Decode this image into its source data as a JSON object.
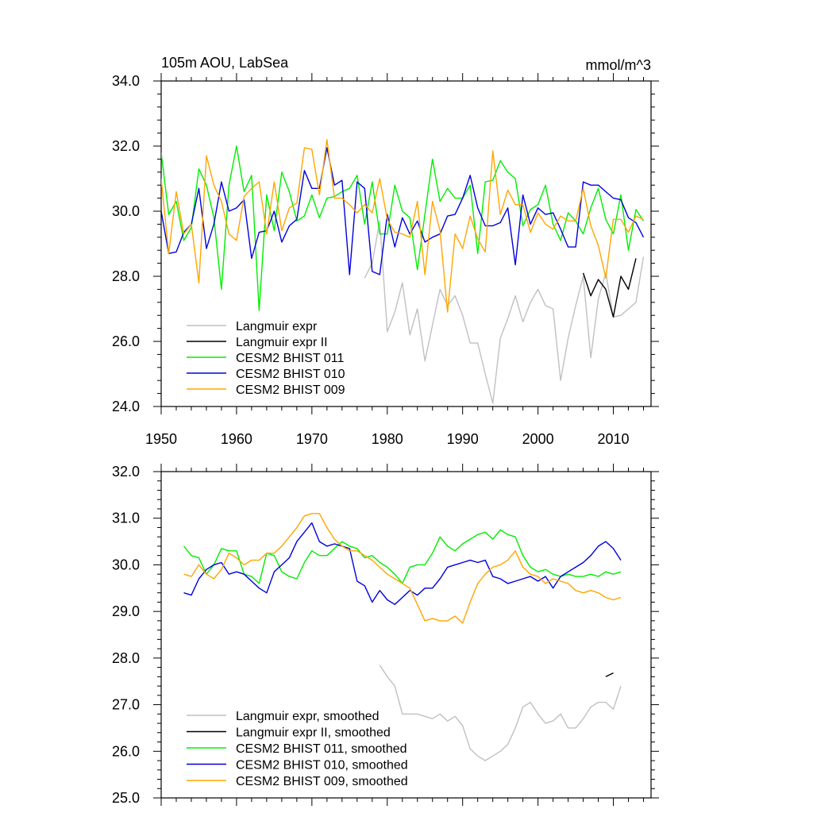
{
  "chart_data": [
    {
      "type": "line",
      "title": "105m AOU, LabSea",
      "units": "mmol/m^3",
      "xlim": [
        1950,
        2015
      ],
      "ylim": [
        24.0,
        34.0
      ],
      "xticks": [
        1950,
        1960,
        1970,
        1980,
        1990,
        2000,
        2010
      ],
      "xtick_labels": [
        "1950",
        "1960",
        "1970",
        "1980",
        "1990",
        "2000",
        "2010"
      ],
      "yticks": [
        24,
        26,
        28,
        30,
        32,
        34
      ],
      "ytick_labels": [
        "24.0",
        "26.0",
        "28.0",
        "30.0",
        "32.0",
        "34.0"
      ],
      "legend_position": "bottom-left",
      "series": [
        {
          "name": "Langmuir expr",
          "color": "#c0c0c0",
          "x": [
            1977,
            1978,
            1979,
            1980,
            1981,
            1982,
            1983,
            1984,
            1985,
            1986,
            1987,
            1988,
            1989,
            1990,
            1991,
            1992,
            1993,
            1994,
            1995,
            1996,
            1997,
            1998,
            1999,
            2000,
            2001,
            2002,
            2003,
            2004,
            2005,
            2006,
            2007,
            2008,
            2009,
            2010,
            2011,
            2012,
            2013,
            2014
          ],
          "y": [
            27.95,
            28.4,
            29.7,
            26.3,
            26.9,
            27.8,
            26.2,
            27.0,
            25.4,
            26.5,
            27.6,
            27.1,
            27.4,
            26.8,
            25.95,
            25.95,
            25.0,
            24.1,
            26.1,
            26.7,
            27.4,
            26.6,
            27.2,
            27.6,
            27.1,
            27.0,
            24.8,
            26.1,
            27.1,
            28.0,
            25.5,
            27.3,
            28.1,
            26.75,
            26.8,
            27.0,
            27.2,
            28.6
          ]
        },
        {
          "name": "Langmuir expr II",
          "color": "#000000",
          "x": [
            2006,
            2007,
            2008,
            2009,
            2010,
            2011,
            2012,
            2013
          ],
          "y": [
            28.1,
            27.4,
            27.9,
            27.6,
            26.75,
            28.0,
            27.6,
            28.55
          ]
        },
        {
          "name": "CESM2 BHIST 011",
          "color": "#00ee00",
          "x": [
            1950,
            1951,
            1952,
            1953,
            1954,
            1955,
            1956,
            1957,
            1958,
            1959,
            1960,
            1961,
            1962,
            1963,
            1964,
            1965,
            1966,
            1967,
            1968,
            1969,
            1970,
            1971,
            1972,
            1973,
            1974,
            1975,
            1976,
            1977,
            1978,
            1979,
            1980,
            1981,
            1982,
            1983,
            1984,
            1985,
            1986,
            1987,
            1988,
            1989,
            1990,
            1991,
            1992,
            1993,
            1994,
            1995,
            1996,
            1997,
            1998,
            1999,
            2000,
            2001,
            2002,
            2003,
            2004,
            2005,
            2006,
            2007,
            2008,
            2009,
            2010,
            2011,
            2012,
            2013,
            2014
          ],
          "y": [
            31.8,
            29.9,
            30.3,
            29.1,
            29.5,
            31.3,
            30.8,
            29.8,
            27.6,
            30.8,
            32.0,
            30.6,
            31.1,
            26.95,
            30.5,
            29.4,
            31.2,
            30.6,
            29.7,
            29.85,
            30.5,
            29.8,
            30.4,
            30.45,
            30.6,
            30.7,
            31.1,
            29.6,
            30.9,
            29.3,
            29.3,
            30.8,
            30.0,
            29.8,
            28.2,
            29.9,
            31.6,
            30.3,
            30.7,
            30.4,
            30.4,
            30.8,
            28.7,
            30.9,
            30.95,
            31.55,
            31.2,
            31.0,
            29.55,
            30.05,
            30.2,
            30.8,
            29.6,
            29.1,
            29.95,
            29.7,
            29.3,
            30.1,
            30.7,
            29.75,
            29.3,
            30.5,
            28.8,
            30.05,
            29.7
          ]
        },
        {
          "name": "CESM2 BHIST 010",
          "color": "#0000dd",
          "x": [
            1950,
            1951,
            1952,
            1953,
            1954,
            1955,
            1956,
            1957,
            1958,
            1959,
            1960,
            1961,
            1962,
            1963,
            1964,
            1965,
            1966,
            1967,
            1968,
            1969,
            1970,
            1971,
            1972,
            1973,
            1974,
            1975,
            1976,
            1977,
            1978,
            1979,
            1980,
            1981,
            1982,
            1983,
            1984,
            1985,
            1986,
            1987,
            1988,
            1989,
            1990,
            1991,
            1992,
            1993,
            1994,
            1995,
            1996,
            1997,
            1998,
            1999,
            2000,
            2001,
            2002,
            2003,
            2004,
            2005,
            2006,
            2007,
            2008,
            2009,
            2010,
            2011,
            2012,
            2013,
            2014
          ],
          "y": [
            30.0,
            28.7,
            28.75,
            29.35,
            29.6,
            30.7,
            28.85,
            29.6,
            30.9,
            30.0,
            30.1,
            30.35,
            28.55,
            29.35,
            29.4,
            30.0,
            29.05,
            29.55,
            29.75,
            31.25,
            30.7,
            30.7,
            31.95,
            30.8,
            30.95,
            28.05,
            30.9,
            30.7,
            28.15,
            28.05,
            29.9,
            28.9,
            29.8,
            29.3,
            29.7,
            29.05,
            29.2,
            29.3,
            29.85,
            29.9,
            30.4,
            31.1,
            30.1,
            29.55,
            29.55,
            29.65,
            30.1,
            28.35,
            30.5,
            29.6,
            30.1,
            29.9,
            29.95,
            29.45,
            28.9,
            28.9,
            30.9,
            30.8,
            30.8,
            30.6,
            30.4,
            30.35,
            29.8,
            29.65,
            29.2
          ]
        },
        {
          "name": "CESM2 BHIST 009",
          "color": "#ffa500",
          "x": [
            1950,
            1951,
            1952,
            1953,
            1954,
            1955,
            1956,
            1957,
            1958,
            1959,
            1960,
            1961,
            1962,
            1963,
            1964,
            1965,
            1966,
            1967,
            1968,
            1969,
            1970,
            1971,
            1972,
            1973,
            1974,
            1975,
            1976,
            1977,
            1978,
            1979,
            1980,
            1981,
            1982,
            1983,
            1984,
            1985,
            1986,
            1987,
            1988,
            1989,
            1990,
            1991,
            1992,
            1993,
            1994,
            1995,
            1996,
            1997,
            1998,
            1999,
            2000,
            2001,
            2002,
            2003,
            2004,
            2005,
            2006,
            2007,
            2008,
            2009,
            2010,
            2011,
            2012,
            2013,
            2014
          ],
          "y": [
            31.0,
            28.7,
            30.6,
            29.3,
            29.6,
            27.8,
            31.7,
            30.8,
            30.3,
            29.3,
            29.1,
            30.45,
            30.7,
            30.9,
            29.3,
            30.9,
            29.4,
            30.1,
            30.25,
            31.95,
            31.9,
            30.5,
            32.2,
            30.4,
            30.4,
            30.2,
            29.95,
            30.2,
            29.95,
            31.0,
            29.75,
            29.35,
            29.3,
            29.2,
            30.3,
            28.05,
            30.3,
            29.4,
            26.9,
            29.3,
            28.85,
            29.85,
            29.15,
            28.75,
            31.85,
            29.9,
            30.65,
            30.2,
            30.2,
            29.35,
            29.95,
            29.6,
            29.45,
            29.85,
            29.7,
            29.7,
            30.7,
            29.55,
            28.95,
            27.95,
            29.75,
            29.75,
            29.35,
            29.85,
            29.75
          ]
        }
      ]
    },
    {
      "type": "line",
      "title": "",
      "xlim": [
        1950,
        2015
      ],
      "ylim": [
        25.0,
        32.0
      ],
      "yticks": [
        25,
        26,
        27,
        28,
        29,
        30,
        31,
        32
      ],
      "ytick_labels": [
        "25.0",
        "26.0",
        "27.0",
        "28.0",
        "29.0",
        "30.0",
        "31.0",
        "32.0"
      ],
      "legend_position": "bottom-left",
      "series": [
        {
          "name": "Langmuir expr, smoothed",
          "color": "#c0c0c0",
          "x": [
            1979,
            1980,
            1981,
            1982,
            1983,
            1984,
            1985,
            1986,
            1987,
            1988,
            1989,
            1990,
            1991,
            1992,
            1993,
            1994,
            1995,
            1996,
            1997,
            1998,
            1999,
            2000,
            2001,
            2002,
            2003,
            2004,
            2005,
            2006,
            2007,
            2008,
            2009,
            2010,
            2011
          ],
          "y": [
            27.85,
            27.6,
            27.4,
            26.8,
            26.8,
            26.8,
            26.75,
            26.7,
            26.8,
            26.65,
            26.75,
            26.55,
            26.05,
            25.9,
            25.8,
            25.9,
            26.0,
            26.15,
            26.5,
            26.95,
            27.05,
            26.8,
            26.6,
            26.65,
            26.8,
            26.5,
            26.5,
            26.7,
            26.95,
            27.05,
            27.05,
            26.9,
            27.4
          ]
        },
        {
          "name": "Langmuir expr II, smoothed",
          "color": "#000000",
          "x": [
            2009,
            2010
          ],
          "y": [
            27.6,
            27.68
          ]
        },
        {
          "name": "CESM2 BHIST 011, smoothed",
          "color": "#00ee00",
          "x": [
            1953,
            1954,
            1955,
            1956,
            1957,
            1958,
            1959,
            1960,
            1961,
            1962,
            1963,
            1964,
            1965,
            1966,
            1967,
            1968,
            1969,
            1970,
            1971,
            1972,
            1973,
            1974,
            1975,
            1976,
            1977,
            1978,
            1979,
            1980,
            1981,
            1982,
            1983,
            1984,
            1985,
            1986,
            1987,
            1988,
            1989,
            1990,
            1991,
            1992,
            1993,
            1994,
            1995,
            1996,
            1997,
            1998,
            1999,
            2000,
            2001,
            2002,
            2003,
            2004,
            2005,
            2006,
            2007,
            2008,
            2009,
            2010,
            2011
          ],
          "y": [
            30.4,
            30.2,
            30.15,
            29.8,
            30.0,
            30.35,
            30.3,
            30.3,
            29.8,
            29.75,
            29.6,
            30.25,
            30.2,
            29.85,
            29.75,
            29.7,
            30.05,
            30.3,
            30.2,
            30.2,
            30.35,
            30.5,
            30.4,
            30.35,
            30.15,
            30.2,
            30.05,
            29.95,
            29.8,
            29.6,
            29.95,
            30.0,
            30.0,
            30.25,
            30.6,
            30.4,
            30.3,
            30.45,
            30.55,
            30.65,
            30.7,
            30.55,
            30.75,
            30.65,
            30.6,
            30.2,
            29.95,
            29.85,
            29.9,
            29.8,
            29.75,
            29.8,
            29.75,
            29.75,
            29.8,
            29.75,
            29.85,
            29.8,
            29.85
          ]
        },
        {
          "name": "CESM2 BHIST 010, smoothed",
          "color": "#0000dd",
          "x": [
            1953,
            1954,
            1955,
            1956,
            1957,
            1958,
            1959,
            1960,
            1961,
            1962,
            1963,
            1964,
            1965,
            1966,
            1967,
            1968,
            1969,
            1970,
            1971,
            1972,
            1973,
            1974,
            1975,
            1976,
            1977,
            1978,
            1979,
            1980,
            1981,
            1982,
            1983,
            1984,
            1985,
            1986,
            1987,
            1988,
            1989,
            1990,
            1991,
            1992,
            1993,
            1994,
            1995,
            1996,
            1997,
            1998,
            1999,
            2000,
            2001,
            2002,
            2003,
            2004,
            2005,
            2006,
            2007,
            2008,
            2009,
            2010,
            2011
          ],
          "y": [
            29.4,
            29.35,
            29.7,
            29.9,
            30.0,
            30.05,
            29.8,
            29.85,
            29.8,
            29.65,
            29.5,
            29.4,
            29.85,
            30.0,
            30.15,
            30.5,
            30.7,
            30.9,
            30.5,
            30.4,
            30.45,
            30.4,
            30.35,
            29.65,
            29.55,
            29.2,
            29.45,
            29.25,
            29.15,
            29.3,
            29.45,
            29.35,
            29.5,
            29.5,
            29.7,
            29.95,
            30.0,
            30.05,
            30.1,
            30.05,
            30.1,
            29.75,
            29.7,
            29.6,
            29.65,
            29.7,
            29.75,
            29.65,
            29.75,
            29.5,
            29.75,
            29.85,
            29.95,
            30.05,
            30.2,
            30.4,
            30.5,
            30.35,
            30.1
          ]
        },
        {
          "name": "CESM2 BHIST 009, smoothed",
          "color": "#ffa500",
          "x": [
            1953,
            1954,
            1955,
            1956,
            1957,
            1958,
            1959,
            1960,
            1961,
            1962,
            1963,
            1964,
            1965,
            1966,
            1967,
            1968,
            1969,
            1970,
            1971,
            1972,
            1973,
            1974,
            1975,
            1976,
            1977,
            1978,
            1979,
            1980,
            1981,
            1982,
            1983,
            1984,
            1985,
            1986,
            1987,
            1988,
            1989,
            1990,
            1991,
            1992,
            1993,
            1994,
            1995,
            1996,
            1997,
            1998,
            1999,
            2000,
            2001,
            2002,
            2003,
            2004,
            2005,
            2006,
            2007,
            2008,
            2009,
            2010,
            2011
          ],
          "y": [
            29.8,
            29.75,
            30.0,
            29.8,
            29.7,
            29.9,
            30.25,
            30.15,
            30.0,
            30.1,
            30.1,
            30.25,
            30.25,
            30.4,
            30.6,
            30.8,
            31.05,
            31.1,
            31.1,
            30.8,
            30.55,
            30.4,
            30.3,
            30.3,
            30.2,
            30.1,
            29.95,
            29.8,
            29.7,
            29.6,
            29.5,
            29.15,
            28.8,
            28.85,
            28.8,
            28.8,
            28.9,
            28.75,
            29.2,
            29.6,
            29.8,
            29.95,
            30.0,
            30.1,
            30.3,
            29.95,
            29.8,
            29.75,
            29.6,
            29.7,
            29.65,
            29.6,
            29.45,
            29.4,
            29.45,
            29.4,
            29.3,
            29.25,
            29.3
          ]
        }
      ]
    }
  ]
}
